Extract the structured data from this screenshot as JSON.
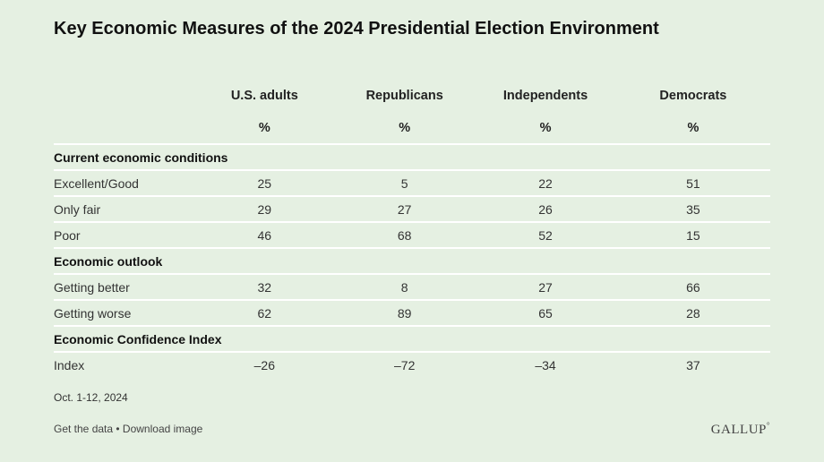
{
  "title": "Key Economic Measures of the 2024 Presidential Election Environment",
  "chart_data": {
    "type": "table",
    "title": "Key Economic Measures of the 2024 Presidential Election Environment",
    "columns": [
      "U.S. adults",
      "Republicans",
      "Independents",
      "Democrats"
    ],
    "unit_row": [
      "%",
      "%",
      "%",
      "%"
    ],
    "rows": [
      {
        "kind": "section",
        "label": "Current economic conditions"
      },
      {
        "kind": "data",
        "label": "Excellent/Good",
        "values": [
          "25",
          "5",
          "22",
          "51"
        ]
      },
      {
        "kind": "data",
        "label": "Only fair",
        "values": [
          "29",
          "27",
          "26",
          "35"
        ]
      },
      {
        "kind": "data",
        "label": "Poor",
        "values": [
          "46",
          "68",
          "52",
          "15"
        ]
      },
      {
        "kind": "section",
        "label": "Economic outlook"
      },
      {
        "kind": "data",
        "label": "Getting better",
        "values": [
          "32",
          "8",
          "27",
          "66"
        ]
      },
      {
        "kind": "data",
        "label": "Getting worse",
        "values": [
          "62",
          "89",
          "65",
          "28"
        ]
      },
      {
        "kind": "section",
        "label": "Economic Confidence Index"
      },
      {
        "kind": "data",
        "label": "Index",
        "values": [
          "–26",
          "–72",
          "–34",
          "37"
        ]
      }
    ]
  },
  "footnote": "Oct. 1-12, 2024",
  "footer": {
    "get_data": "Get the data",
    "separator": " • ",
    "download": "Download image"
  },
  "logo": "GALLUP",
  "logo_mark": "°"
}
